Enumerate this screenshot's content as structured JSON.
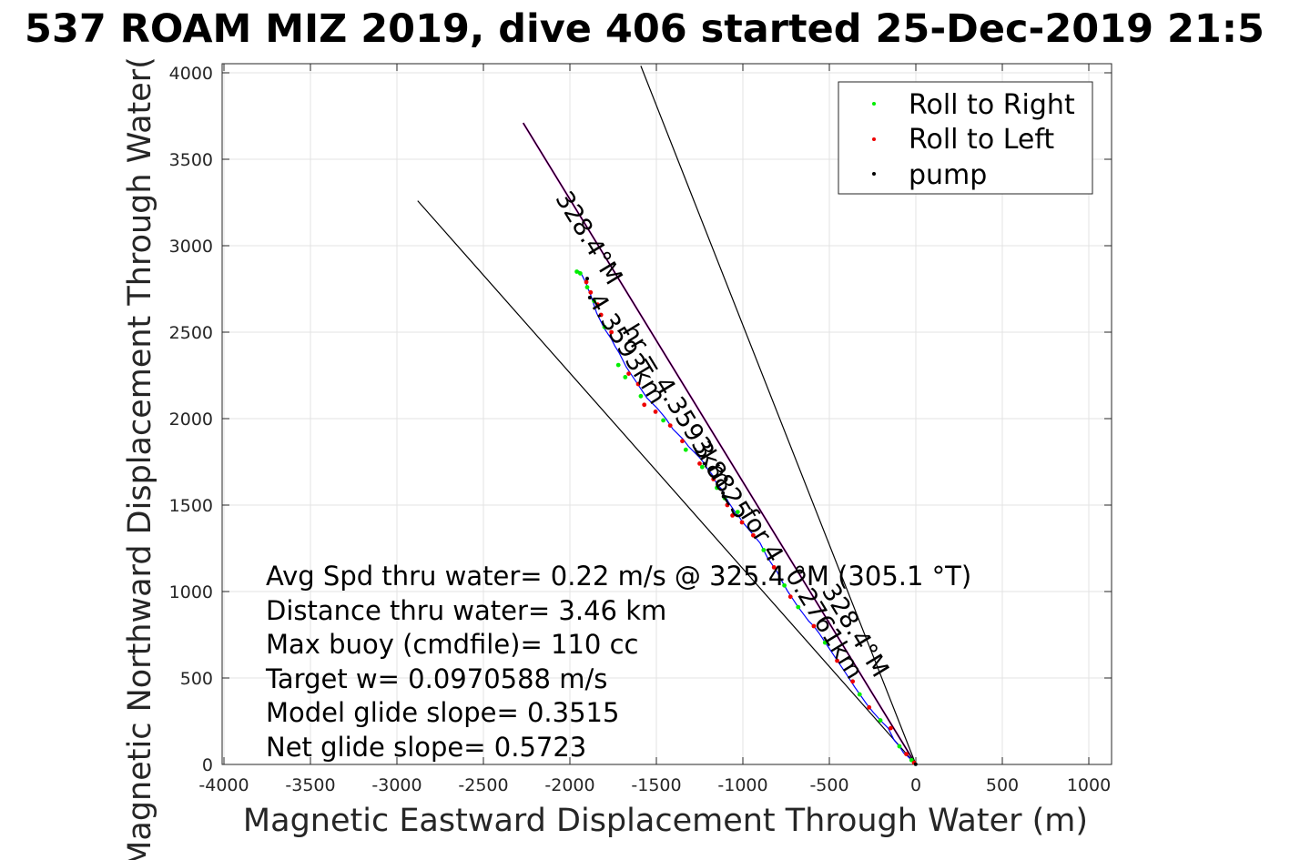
{
  "title": "537 ROAM MIZ 2019, dive 406 started 25-Dec-2019 21:5",
  "chart_data": {
    "type": "line",
    "xlabel": "Magnetic Eastward Displacement Through Water (m)",
    "ylabel": "Magnetic Northward Displacement Through Water(",
    "xlim": [
      -4000,
      1100
    ],
    "ylim": [
      0,
      4040
    ],
    "xticks": [
      -4000,
      -3500,
      -3000,
      -2500,
      -2000,
      -1500,
      -1000,
      -500,
      0,
      500,
      1000
    ],
    "yticks": [
      0,
      500,
      1000,
      1500,
      2000,
      2500,
      3000,
      3500,
      4000
    ],
    "grid": true,
    "legend_position": "top-right",
    "legend": [
      {
        "label": "Roll to Right",
        "color": "#00ee00"
      },
      {
        "label": "Roll to Left",
        "color": "#ee0000"
      },
      {
        "label": "pump",
        "color": "#000000"
      }
    ],
    "series": [
      {
        "color": "#0000ff",
        "x": [
          0,
          -20,
          -45,
          -70,
          -95,
          -125,
          -160,
          -200,
          -245,
          -285,
          -320,
          -355,
          -400,
          -440,
          -480,
          -520,
          -560,
          -590,
          -620,
          -650,
          -680,
          -700,
          -720,
          -740,
          -760,
          -780,
          -800,
          -820,
          -840,
          -860,
          -880,
          -900,
          -925,
          -950,
          -975,
          -1000,
          -1020,
          -1045,
          -1065,
          -1085,
          -1100,
          -1110,
          -1120,
          -1140,
          -1160,
          -1180,
          -1205,
          -1230,
          -1255,
          -1285,
          -1315,
          -1345,
          -1375,
          -1405,
          -1425,
          -1445,
          -1470,
          -1495,
          -1525,
          -1555,
          -1575,
          -1595,
          -1615,
          -1635,
          -1655,
          -1675,
          -1695,
          -1715,
          -1740,
          -1760,
          -1780,
          -1800,
          -1815,
          -1830,
          -1845,
          -1855,
          -1865,
          -1875,
          -1885,
          -1895,
          -1905,
          -1915,
          -1925,
          -1935,
          -1945,
          -1955
        ],
        "y": [
          0,
          20,
          45,
          65,
          105,
          140,
          210,
          250,
          300,
          350,
          400,
          450,
          520,
          580,
          640,
          700,
          760,
          800,
          830,
          870,
          910,
          940,
          970,
          1000,
          1035,
          1070,
          1110,
          1140,
          1170,
          1200,
          1240,
          1280,
          1310,
          1340,
          1370,
          1400,
          1430,
          1460,
          1490,
          1520,
          1550,
          1560,
          1590,
          1610,
          1640,
          1680,
          1710,
          1750,
          1780,
          1810,
          1840,
          1880,
          1910,
          1940,
          1970,
          2000,
          2030,
          2060,
          2090,
          2120,
          2150,
          2180,
          2210,
          2240,
          2270,
          2300,
          2340,
          2380,
          2420,
          2460,
          2490,
          2520,
          2550,
          2580,
          2610,
          2640,
          2670,
          2700,
          2730,
          2750,
          2780,
          2800,
          2820,
          2840,
          2850,
          2855
        ]
      }
    ],
    "roll_right": {
      "x": [
        -25,
        -95,
        -205,
        -325,
        -525,
        -680,
        -760,
        -880,
        -1030,
        -1105,
        -1150,
        -1235,
        -1330,
        -1460,
        -1590,
        -1680,
        -1720,
        -1800,
        -1860,
        -1900,
        -1940,
        -1960
      ],
      "y": [
        25,
        105,
        255,
        405,
        705,
        910,
        1035,
        1240,
        1460,
        1540,
        1600,
        1720,
        1820,
        1990,
        2130,
        2240,
        2310,
        2530,
        2680,
        2760,
        2840,
        2850
      ]
    },
    "roll_left": {
      "x": [
        -10,
        -55,
        -145,
        -270,
        -365,
        -455,
        -590,
        -725,
        -820,
        -940,
        -1005,
        -1060,
        -1090,
        -1170,
        -1250,
        -1350,
        -1420,
        -1505,
        -1570,
        -1605,
        -1660,
        -1760,
        -1820,
        -1840,
        -1880,
        -1905
      ],
      "y": [
        10,
        60,
        210,
        330,
        480,
        600,
        800,
        970,
        1140,
        1325,
        1400,
        1440,
        1500,
        1650,
        1740,
        1870,
        1960,
        2040,
        2080,
        2200,
        2260,
        2500,
        2600,
        2660,
        2730,
        2790
      ]
    },
    "pump": {
      "x": [
        -1,
        -1900,
        -1885,
        -1115,
        -1112
      ],
      "y": [
        1,
        2810,
        2700,
        1570,
        1550
      ]
    },
    "reference_lines": [
      {
        "name": "magenta-heading",
        "color": "#cc00cc",
        "x": [
          0,
          -2270
        ],
        "y": [
          0,
          3710
        ]
      },
      {
        "name": "center-line",
        "color": "#000000",
        "x": [
          0,
          -2270
        ],
        "y": [
          0,
          3710
        ]
      },
      {
        "name": "bound-right",
        "color": "#000000",
        "x": [
          0,
          -1590
        ],
        "y": [
          0,
          4040
        ]
      },
      {
        "name": "bound-left",
        "color": "#000000",
        "x": [
          0,
          -2880
        ],
        "y": [
          0,
          3260
        ]
      }
    ],
    "line_labels": [
      {
        "text": "328.4°M",
        "x": -1930,
        "y": 3020
      },
      {
        "text": "4.3593km",
        "x": -1710,
        "y": 2380
      },
      {
        "text": "hr = 4.3593km",
        "x": -1420,
        "y": 2050
      },
      {
        "text": "3.8825",
        "x": -1160,
        "y": 1620
      },
      {
        "text": "for 4",
        "x": -930,
        "y": 1300
      },
      {
        "text": "0.2761km",
        "x": -570,
        "y": 790
      },
      {
        "text": "328.4°M",
        "x": -390,
        "y": 750
      }
    ],
    "annotations": [
      "Avg Spd thru water=  0.22 m/s @ 325.4 °M (305.1 °T)",
      "Distance thru water=  3.46 km",
      "Max buoy (cmdfile)= 110 cc",
      "Target w= 0.0970588 m/s",
      "Model glide slope= 0.3515",
      "Net glide slope= 0.5723"
    ]
  }
}
